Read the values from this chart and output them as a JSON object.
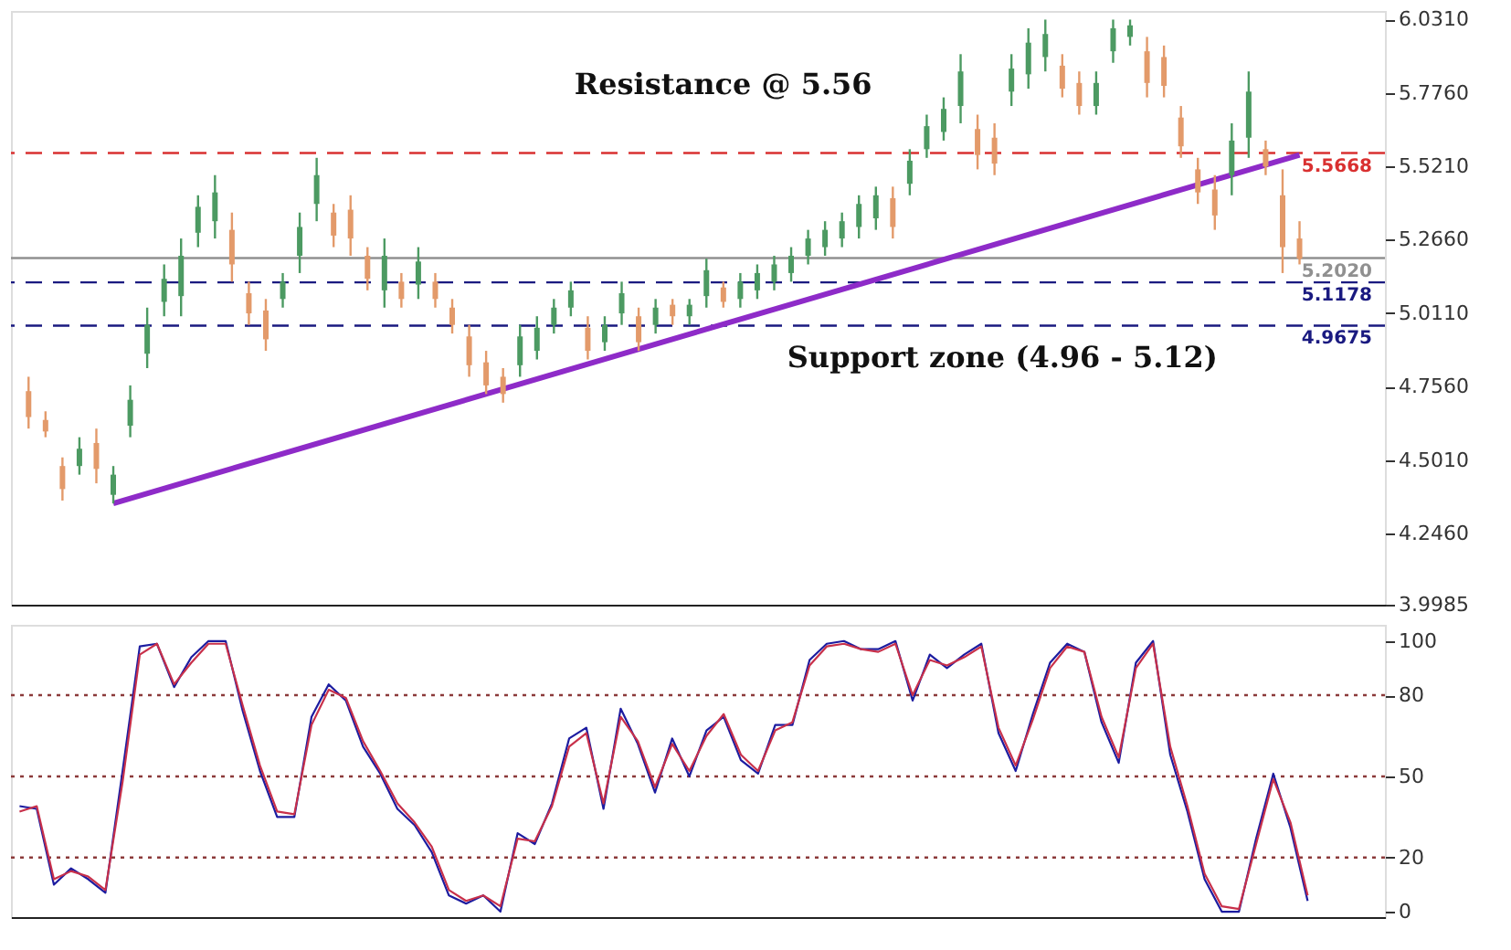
{
  "chart_data": [
    {
      "type": "candlestick",
      "categories": [
        null,
        null,
        null,
        null,
        null,
        null,
        null,
        null,
        null,
        null,
        null,
        null,
        null,
        null,
        null,
        null,
        null,
        null,
        null,
        null,
        null,
        null,
        null,
        null,
        null,
        null,
        null,
        null,
        null,
        null,
        null,
        null,
        null,
        null,
        null,
        null,
        null,
        null,
        null,
        null,
        null,
        null,
        null,
        null,
        null,
        null,
        null,
        null,
        null,
        null,
        null,
        null,
        null,
        null,
        null,
        null,
        null,
        null,
        null,
        null,
        null,
        null,
        null,
        null,
        null,
        null,
        null,
        null,
        null,
        null,
        null,
        null,
        null,
        null,
        null,
        null
      ],
      "ohlc": [
        [
          4.74,
          4.79,
          4.61,
          4.65
        ],
        [
          4.64,
          4.67,
          4.58,
          4.6
        ],
        [
          4.48,
          4.51,
          4.36,
          4.4
        ],
        [
          4.48,
          4.58,
          4.45,
          4.54
        ],
        [
          4.56,
          4.61,
          4.42,
          4.47
        ],
        [
          4.38,
          4.48,
          4.35,
          4.45
        ],
        [
          4.62,
          4.76,
          4.58,
          4.71
        ],
        [
          4.87,
          5.03,
          4.82,
          4.97
        ],
        [
          5.05,
          5.18,
          5.0,
          5.13
        ],
        [
          5.07,
          5.27,
          5.0,
          5.21
        ],
        [
          5.29,
          5.42,
          5.24,
          5.38
        ],
        [
          5.33,
          5.49,
          5.27,
          5.43
        ],
        [
          5.3,
          5.36,
          5.12,
          5.18
        ],
        [
          5.08,
          5.12,
          4.97,
          5.01
        ],
        [
          5.02,
          5.06,
          4.88,
          4.92
        ],
        [
          5.06,
          5.15,
          5.03,
          5.12
        ],
        [
          5.21,
          5.36,
          5.15,
          5.31
        ],
        [
          5.39,
          5.55,
          5.33,
          5.49
        ],
        [
          5.36,
          5.39,
          5.24,
          5.28
        ],
        [
          5.37,
          5.42,
          5.21,
          5.27
        ],
        [
          5.21,
          5.24,
          5.09,
          5.13
        ],
        [
          5.09,
          5.27,
          5.03,
          5.21
        ],
        [
          5.12,
          5.15,
          5.03,
          5.06
        ],
        [
          5.11,
          5.24,
          5.06,
          5.19
        ],
        [
          5.12,
          5.15,
          5.03,
          5.06
        ],
        [
          5.03,
          5.06,
          4.94,
          4.97
        ],
        [
          4.93,
          4.97,
          4.79,
          4.83
        ],
        [
          4.84,
          4.88,
          4.73,
          4.76
        ],
        [
          4.79,
          4.82,
          4.7,
          4.73
        ],
        [
          4.83,
          4.97,
          4.79,
          4.93
        ],
        [
          4.88,
          5.0,
          4.85,
          4.96
        ],
        [
          4.97,
          5.06,
          4.94,
          5.03
        ],
        [
          5.03,
          5.12,
          5.0,
          5.09
        ],
        [
          4.96,
          5.0,
          4.85,
          4.88
        ],
        [
          4.91,
          5.0,
          4.88,
          4.97
        ],
        [
          5.01,
          5.12,
          4.97,
          5.08
        ],
        [
          5.0,
          5.03,
          4.88,
          4.91
        ],
        [
          4.97,
          5.06,
          4.94,
          5.03
        ],
        [
          5.04,
          5.06,
          4.97,
          5.0
        ],
        [
          5.0,
          5.06,
          4.97,
          5.04
        ],
        [
          5.07,
          5.2,
          5.03,
          5.16
        ],
        [
          5.1,
          5.12,
          5.03,
          5.05
        ],
        [
          5.06,
          5.15,
          5.03,
          5.12
        ],
        [
          5.09,
          5.18,
          5.06,
          5.15
        ],
        [
          5.12,
          5.21,
          5.09,
          5.18
        ],
        [
          5.15,
          5.24,
          5.12,
          5.21
        ],
        [
          5.21,
          5.3,
          5.18,
          5.27
        ],
        [
          5.24,
          5.33,
          5.21,
          5.3
        ],
        [
          5.27,
          5.36,
          5.24,
          5.33
        ],
        [
          5.31,
          5.42,
          5.27,
          5.39
        ],
        [
          5.34,
          5.45,
          5.3,
          5.42
        ],
        [
          5.41,
          5.45,
          5.27,
          5.31
        ],
        [
          5.46,
          5.58,
          5.42,
          5.54
        ],
        [
          5.58,
          5.7,
          5.55,
          5.66
        ],
        [
          5.64,
          5.76,
          5.61,
          5.72
        ],
        [
          5.73,
          5.91,
          5.67,
          5.85
        ],
        [
          5.65,
          5.7,
          5.51,
          5.56
        ],
        [
          5.62,
          5.67,
          5.49,
          5.53
        ],
        [
          5.78,
          5.91,
          5.73,
          5.86
        ],
        [
          5.84,
          6.0,
          5.79,
          5.95
        ],
        [
          5.9,
          6.03,
          5.85,
          5.98
        ],
        [
          5.87,
          5.91,
          5.76,
          5.79
        ],
        [
          5.81,
          5.85,
          5.7,
          5.73
        ],
        [
          5.73,
          5.85,
          5.7,
          5.81
        ],
        [
          5.92,
          6.03,
          5.88,
          6.0
        ],
        [
          5.97,
          6.03,
          5.94,
          6.01
        ],
        [
          5.92,
          5.97,
          5.76,
          5.81
        ],
        [
          5.9,
          5.94,
          5.76,
          5.8
        ],
        [
          5.69,
          5.73,
          5.55,
          5.59
        ],
        [
          5.51,
          5.55,
          5.39,
          5.43
        ],
        [
          5.44,
          5.49,
          5.3,
          5.35
        ],
        [
          5.49,
          5.67,
          5.42,
          5.61
        ],
        [
          5.62,
          5.85,
          5.55,
          5.78
        ],
        [
          5.58,
          5.61,
          5.49,
          5.52
        ],
        [
          5.42,
          5.51,
          5.15,
          5.24
        ],
        [
          5.27,
          5.33,
          5.18,
          5.2
        ]
      ],
      "colors": [
        "#e39a6a",
        "#e39a6a",
        "#e39a6a",
        "#4c9a62",
        "#e39a6a",
        "#4c9a62",
        "#4c9a62",
        "#4c9a62",
        "#4c9a62",
        "#4c9a62",
        "#4c9a62",
        "#4c9a62",
        "#e39a6a",
        "#e39a6a",
        "#e39a6a",
        "#4c9a62",
        "#4c9a62",
        "#4c9a62",
        "#e39a6a",
        "#e39a6a",
        "#e39a6a",
        "#4c9a62",
        "#e39a6a",
        "#4c9a62",
        "#e39a6a",
        "#e39a6a",
        "#e39a6a",
        "#e39a6a",
        "#e39a6a",
        "#4c9a62",
        "#4c9a62",
        "#4c9a62",
        "#4c9a62",
        "#e39a6a",
        "#4c9a62",
        "#4c9a62",
        "#e39a6a",
        "#4c9a62",
        "#e39a6a",
        "#4c9a62",
        "#4c9a62",
        "#e39a6a",
        "#4c9a62",
        "#4c9a62",
        "#4c9a62",
        "#4c9a62",
        "#4c9a62",
        "#4c9a62",
        "#4c9a62",
        "#4c9a62",
        "#4c9a62",
        "#e39a6a",
        "#4c9a62",
        "#4c9a62",
        "#4c9a62",
        "#4c9a62",
        "#e39a6a",
        "#e39a6a",
        "#4c9a62",
        "#4c9a62",
        "#4c9a62",
        "#e39a6a",
        "#e39a6a",
        "#4c9a62",
        "#4c9a62",
        "#4c9a62",
        "#e39a6a",
        "#e39a6a",
        "#e39a6a",
        "#e39a6a",
        "#e39a6a",
        "#4c9a62",
        "#4c9a62",
        "#e39a6a",
        "#e39a6a",
        "#e39a6a"
      ],
      "series": [
        {
          "type": "line",
          "color": "#8e2bc8",
          "values": [
            null,
            null,
            null,
            null,
            null,
            4.35,
            null,
            null,
            null,
            null,
            null,
            null,
            null,
            null,
            null,
            null,
            null,
            null,
            null,
            null,
            null,
            null,
            null,
            null,
            null,
            null,
            null,
            null,
            null,
            null,
            null,
            null,
            null,
            null,
            null,
            null,
            null,
            null,
            null,
            null,
            null,
            null,
            null,
            null,
            null,
            null,
            null,
            null,
            null,
            null,
            null,
            null,
            null,
            null,
            null,
            null,
            null,
            null,
            null,
            null,
            null,
            null,
            null,
            null,
            null,
            null,
            null,
            null,
            null,
            null,
            null,
            null,
            null,
            null,
            null,
            5.56
          ]
        }
      ],
      "ylim": [
        3.9985,
        6.06
      ],
      "yticks": [
        {
          "value": 3.9985,
          "label": "3.9985"
        },
        {
          "value": 4.246,
          "label": "4.2460"
        },
        {
          "value": 4.501,
          "label": "4.5010"
        },
        {
          "value": 4.756,
          "label": "4.7560"
        },
        {
          "value": 5.011,
          "label": "5.0110"
        },
        {
          "value": 5.266,
          "label": "5.2660"
        },
        {
          "value": 5.521,
          "label": "5.5210"
        },
        {
          "value": 5.776,
          "label": "5.7760"
        },
        {
          "value": 6.031,
          "label": "6.0310"
        }
      ],
      "tick_labels": "y",
      "ref_lines": [
        {
          "axis": "y",
          "value": 5.5668,
          "label": "5.5668",
          "color": "#d93030",
          "line_style": "dashed"
        },
        {
          "axis": "y",
          "value": 5.202,
          "label": "5.2020",
          "color": "#909090",
          "line_style": "solid"
        },
        {
          "axis": "y",
          "value": 5.1178,
          "label": "5.1178",
          "color": "#1a1a80",
          "line_style": "dashed"
        },
        {
          "axis": "y",
          "value": 4.9675,
          "label": "4.9675",
          "color": "#1a1a80",
          "line_style": "dashed"
        }
      ],
      "annotations": [
        "Resistance @ 5.56",
        "Support zone (4.96 - 5.12)"
      ]
    },
    {
      "type": "line",
      "categories": [
        null,
        null,
        null,
        null,
        null,
        null,
        null,
        null,
        null,
        null,
        null,
        null,
        null,
        null,
        null,
        null,
        null,
        null,
        null,
        null,
        null,
        null,
        null,
        null,
        null,
        null,
        null,
        null,
        null,
        null,
        null,
        null,
        null,
        null,
        null,
        null,
        null,
        null,
        null,
        null,
        null,
        null,
        null,
        null,
        null,
        null,
        null,
        null,
        null,
        null,
        null,
        null,
        null,
        null,
        null,
        null,
        null,
        null,
        null,
        null,
        null,
        null,
        null,
        null,
        null,
        null,
        null,
        null,
        null,
        null,
        null,
        null,
        null,
        null,
        null,
        null
      ],
      "series": [
        {
          "color": "#1c1ca0",
          "values": [
            39,
            38,
            10,
            16,
            12,
            7,
            52,
            98,
            99,
            83,
            94,
            100,
            100,
            74,
            52,
            35,
            35,
            72,
            84,
            78,
            61,
            51,
            38,
            32,
            22,
            6,
            3,
            6,
            0,
            29,
            25,
            40,
            64,
            68,
            38,
            75,
            62,
            44,
            64,
            50,
            67,
            72,
            56,
            51,
            69,
            69,
            93,
            99,
            100,
            97,
            97,
            100,
            78,
            95,
            90,
            95,
            99,
            66,
            52,
            73,
            92,
            99,
            96,
            70,
            55,
            92,
            100,
            58,
            37,
            12,
            0,
            0,
            27,
            51,
            31,
            4
          ]
        },
        {
          "color": "#c8304a",
          "values": [
            37,
            39,
            12,
            15,
            13,
            8,
            48,
            95,
            99,
            84,
            92,
            99,
            99,
            76,
            54,
            37,
            36,
            69,
            82,
            79,
            63,
            52,
            40,
            33,
            24,
            8,
            4,
            6,
            2,
            27,
            26,
            39,
            61,
            66,
            40,
            72,
            63,
            46,
            62,
            52,
            65,
            73,
            58,
            52,
            67,
            70,
            91,
            98,
            99,
            97,
            96,
            99,
            80,
            93,
            91,
            94,
            98,
            68,
            54,
            71,
            90,
            98,
            96,
            72,
            57,
            90,
            99,
            61,
            39,
            14,
            2,
            1,
            25,
            49,
            33,
            6
          ]
        }
      ],
      "ylim": [
        -2,
        106
      ],
      "yticks": [
        0,
        20,
        50,
        80,
        100
      ],
      "tick_labels": "y",
      "ref_lines": [
        {
          "axis": "y",
          "value": 20,
          "color": "#8b3a3a",
          "line_style": "dotted"
        },
        {
          "axis": "y",
          "value": 50,
          "color": "#8b3a3a",
          "line_style": "dotted"
        },
        {
          "axis": "y",
          "value": 80,
          "color": "#8b3a3a",
          "line_style": "dotted"
        }
      ]
    }
  ]
}
